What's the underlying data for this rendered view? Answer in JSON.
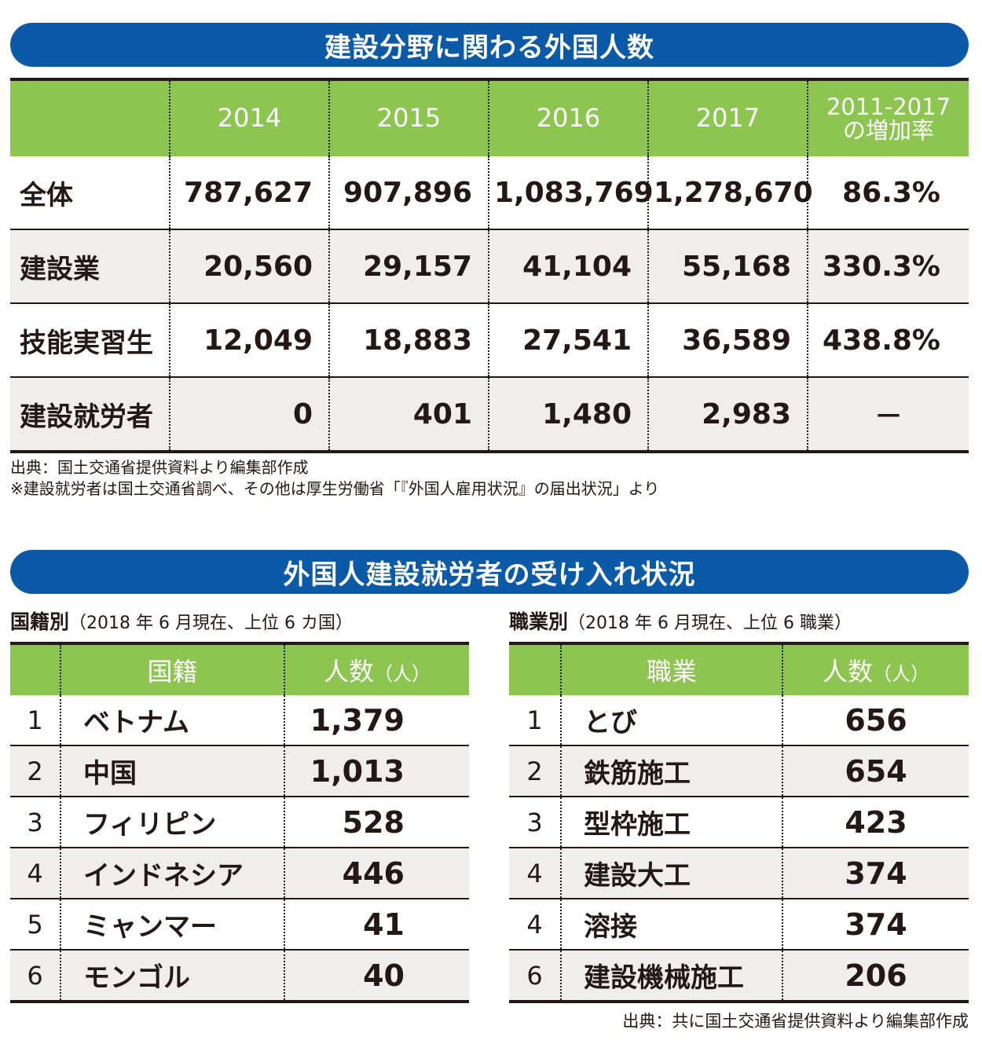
{
  "section1": {
    "title": "建設分野に関わる外国人数",
    "headers": [
      "",
      "2014",
      "2015",
      "2016",
      "2017",
      "2011-2017\nの増加率"
    ],
    "rows": [
      {
        "label": "全体",
        "values": [
          "787,627",
          "907,896",
          "1,083,769",
          "1,278,670"
        ],
        "rate": "86.3%"
      },
      {
        "label": "建設業",
        "values": [
          "20,560",
          "29,157",
          "41,104",
          "55,168"
        ],
        "rate": "330.3%"
      },
      {
        "label": "技能実習生",
        "values": [
          "12,049",
          "18,883",
          "27,541",
          "36,589"
        ],
        "rate": "438.8%"
      },
      {
        "label": "建設就労者",
        "values": [
          "0",
          "401",
          "1,480",
          "2,983"
        ],
        "rate": "－"
      }
    ],
    "source": "出典：国土交通省提供資料より編集部作成",
    "note": "※建設就労者は国土交通省調べ、その他は厚生労働省「『外国人雇用状況』の届出状況」より"
  },
  "section2": {
    "title": "外国人建設就労者の受け入れ状況",
    "by_nationality": {
      "heading": "国籍別",
      "subheading": "（2018 年 6 月現在、上位 6 カ国）",
      "col_name": "国籍",
      "col_count": "人数",
      "col_unit": "（人）",
      "rows": [
        {
          "rank": "1",
          "name": "ベトナム",
          "count": "1,379"
        },
        {
          "rank": "2",
          "name": "中国",
          "count": "1,013"
        },
        {
          "rank": "3",
          "name": "フィリピン",
          "count": "528"
        },
        {
          "rank": "4",
          "name": "インドネシア",
          "count": "446"
        },
        {
          "rank": "5",
          "name": "ミャンマー",
          "count": "41"
        },
        {
          "rank": "6",
          "name": "モンゴル",
          "count": "40"
        }
      ]
    },
    "by_occupation": {
      "heading": "職業別",
      "subheading": "（2018 年 6 月現在、上位 6 職業）",
      "col_name": "職業",
      "col_count": "人数",
      "col_unit": "（人）",
      "rows": [
        {
          "rank": "1",
          "name": "とび",
          "count": "656"
        },
        {
          "rank": "2",
          "name": "鉄筋施工",
          "count": "654"
        },
        {
          "rank": "3",
          "name": "型枠施工",
          "count": "423"
        },
        {
          "rank": "4",
          "name": "建設大工",
          "count": "374"
        },
        {
          "rank": "4",
          "name": "溶接",
          "count": "374"
        },
        {
          "rank": "6",
          "name": "建設機械施工",
          "count": "206"
        }
      ]
    },
    "source": "出典：共に国土交通省提供資料より編集部作成"
  }
}
